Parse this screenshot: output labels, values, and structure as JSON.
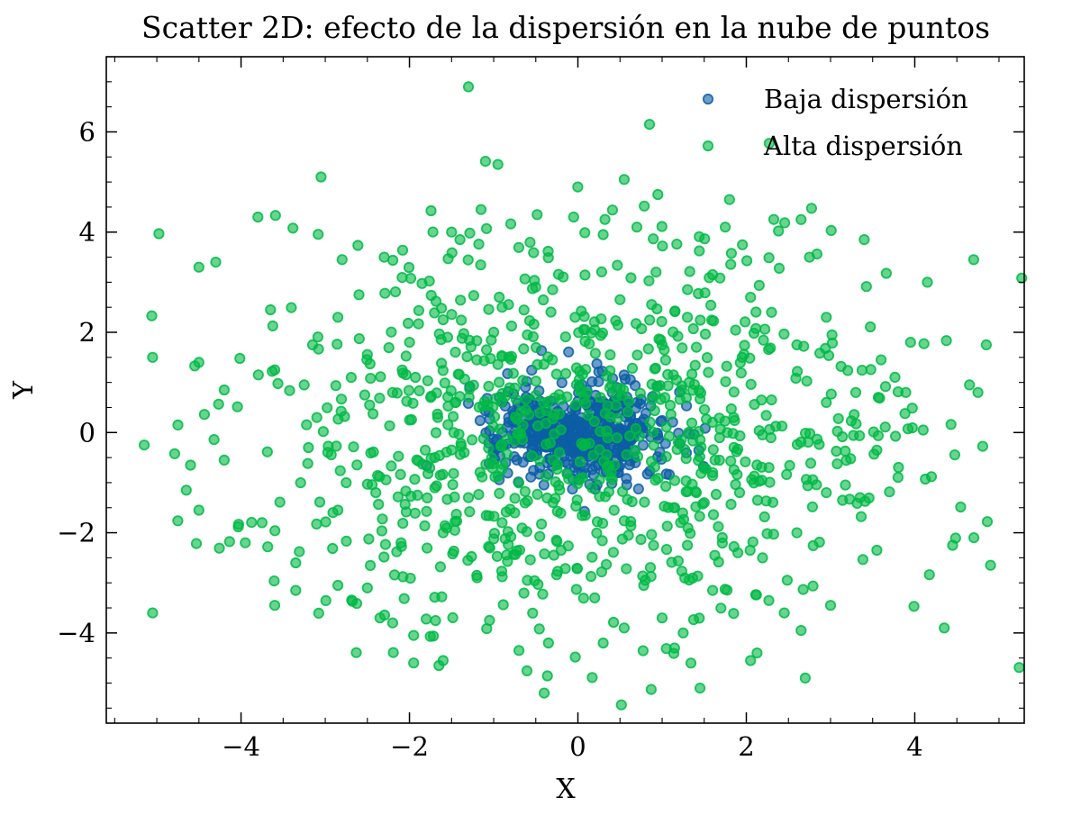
{
  "chart_data": {
    "type": "scatter",
    "title": "Scatter 2D: efecto de la dispersión en la nube de puntos",
    "xlabel": "X",
    "ylabel": "Y",
    "xlim": [
      -5.6,
      5.3
    ],
    "ylim": [
      -5.8,
      7.5
    ],
    "xticks": [
      -4,
      -2,
      0,
      2,
      4
    ],
    "yticks": [
      -4,
      -2,
      0,
      2,
      4,
      6
    ],
    "xtick_labels": [
      "−4",
      "−2",
      "0",
      "2",
      "4"
    ],
    "ytick_labels": [
      "−4",
      "−2",
      "0",
      "2",
      "4",
      "6"
    ],
    "grid": false,
    "legend_position": "top-right",
    "series": [
      {
        "name": "Baja dispersión",
        "color": "#0C5DA5",
        "distribution": "normal",
        "mean": [
          0,
          0
        ],
        "std": 0.5,
        "count": 500,
        "seed": 7
      },
      {
        "name": "Alta dispersión",
        "color": "#00B945",
        "distribution": "normal",
        "mean": [
          0,
          0
        ],
        "std": 2.0,
        "count": 1000,
        "seed": 42,
        "points": [
          [
            -1.3,
            6.9
          ],
          [
            0.85,
            6.15
          ],
          [
            -3.05,
            5.1
          ],
          [
            -0.95,
            5.35
          ],
          [
            0.55,
            5.05
          ],
          [
            0.95,
            4.75
          ],
          [
            1.8,
            4.65
          ],
          [
            -3.8,
            4.3
          ],
          [
            -4.3,
            3.4
          ],
          [
            -4.5,
            3.3
          ],
          [
            2.65,
            4.25
          ],
          [
            3.4,
            3.85
          ],
          [
            4.7,
            3.45
          ],
          [
            -2.8,
            3.45
          ],
          [
            -0.05,
            4.3
          ],
          [
            0.7,
            4.1
          ],
          [
            -1.15,
            4.45
          ],
          [
            2.75,
            3.5
          ],
          [
            3.95,
            1.8
          ],
          [
            4.85,
            1.75
          ],
          [
            -5.05,
            1.5
          ],
          [
            -4.5,
            1.4
          ],
          [
            -3.65,
            2.45
          ],
          [
            -3.6,
            1.25
          ],
          [
            4.15,
            3.0
          ],
          [
            -5.05,
            -3.6
          ],
          [
            -5.15,
            -0.25
          ],
          [
            -4.6,
            -0.65
          ],
          [
            -4.65,
            -1.15
          ],
          [
            -4.5,
            -1.55
          ],
          [
            -3.95,
            -2.2
          ],
          [
            -3.75,
            -1.8
          ],
          [
            -3.6,
            -3.45
          ],
          [
            -3.35,
            -2.6
          ],
          [
            -3.35,
            -3.15
          ],
          [
            -2.85,
            -3.05
          ],
          [
            -2.35,
            -3.7
          ],
          [
            -2.2,
            -3.8
          ],
          [
            -1.95,
            -4.6
          ],
          [
            -1.95,
            -4.05
          ],
          [
            -1.65,
            -4.65
          ],
          [
            -1.6,
            -4.55
          ],
          [
            -0.4,
            -5.2
          ],
          [
            -0.35,
            -4.2
          ],
          [
            0.3,
            -4.2
          ],
          [
            0.55,
            -3.9
          ],
          [
            1.45,
            -5.1
          ],
          [
            2.05,
            -4.55
          ],
          [
            2.7,
            -4.9
          ],
          [
            2.65,
            -3.95
          ],
          [
            4.35,
            -3.9
          ],
          [
            4.45,
            -2.25
          ],
          [
            4.9,
            -2.65
          ],
          [
            3.55,
            -2.35
          ],
          [
            3.0,
            -3.45
          ],
          [
            2.45,
            -3.6
          ],
          [
            1.6,
            -3.15
          ],
          [
            1.0,
            -3.7
          ],
          [
            1.25,
            -4.0
          ],
          [
            -0.7,
            -4.35
          ],
          [
            -1.05,
            -3.75
          ],
          [
            -2.5,
            -3.1
          ],
          [
            -2.85,
            -1.55
          ],
          [
            -3.2,
            -0.3
          ],
          [
            -4.2,
            0.85
          ],
          [
            -4.75,
            0.15
          ],
          [
            -4.2,
            -0.55
          ],
          [
            4.65,
            0.95
          ],
          [
            4.75,
            0.8
          ],
          [
            4.1,
            0.05
          ],
          [
            3.55,
            -0.35
          ],
          [
            2.95,
            0.6
          ],
          [
            3.3,
            0.8
          ],
          [
            3.6,
            1.45
          ],
          [
            2.95,
            2.3
          ],
          [
            2.3,
            2.4
          ],
          [
            2.05,
            2.7
          ],
          [
            1.6,
            3.15
          ],
          [
            1.75,
            4.1
          ],
          [
            0.3,
            3.95
          ],
          [
            -1.5,
            4.0
          ],
          [
            -1.4,
            3.85
          ],
          [
            -2.85,
            2.3
          ],
          [
            -2.6,
            2.75
          ],
          [
            -2.3,
            3.5
          ],
          [
            -3.25,
            0.95
          ],
          [
            -3.1,
            0.3
          ],
          [
            -2.0,
            0.25
          ],
          [
            -2.4,
            -1.2
          ],
          [
            -1.6,
            -2.0
          ],
          [
            -2.1,
            -2.2
          ],
          [
            -1.2,
            -2.85
          ],
          [
            -0.6,
            -2.95
          ],
          [
            0.2,
            -3.3
          ],
          [
            0.8,
            -2.95
          ],
          [
            1.3,
            -2.25
          ],
          [
            1.9,
            -2.4
          ],
          [
            2.6,
            -2.0
          ],
          [
            2.95,
            -1.2
          ],
          [
            3.35,
            -1.3
          ],
          [
            2.3,
            0.65
          ],
          [
            2.6,
            1.75
          ],
          [
            1.95,
            1.5
          ],
          [
            1.3,
            2.3
          ],
          [
            0.5,
            2.65
          ],
          [
            -0.3,
            2.85
          ],
          [
            -0.9,
            2.5
          ],
          [
            -1.6,
            2.25
          ],
          [
            -2.0,
            1.8
          ],
          [
            -2.2,
            0.8
          ],
          [
            -1.7,
            -0.5
          ],
          [
            -1.3,
            -1.3
          ],
          [
            -0.9,
            -1.8
          ],
          [
            -0.2,
            -2.35
          ],
          [
            0.6,
            -2.05
          ],
          [
            1.15,
            -1.5
          ],
          [
            1.6,
            -0.8
          ],
          [
            1.85,
            0.3
          ],
          [
            1.55,
            1.2
          ],
          [
            1.0,
            1.75
          ],
          [
            0.2,
            2.05
          ],
          [
            -0.6,
            1.95
          ],
          [
            -1.2,
            1.45
          ],
          [
            -1.45,
            0.6
          ],
          [
            -1.35,
            -0.4
          ]
        ]
      }
    ]
  }
}
